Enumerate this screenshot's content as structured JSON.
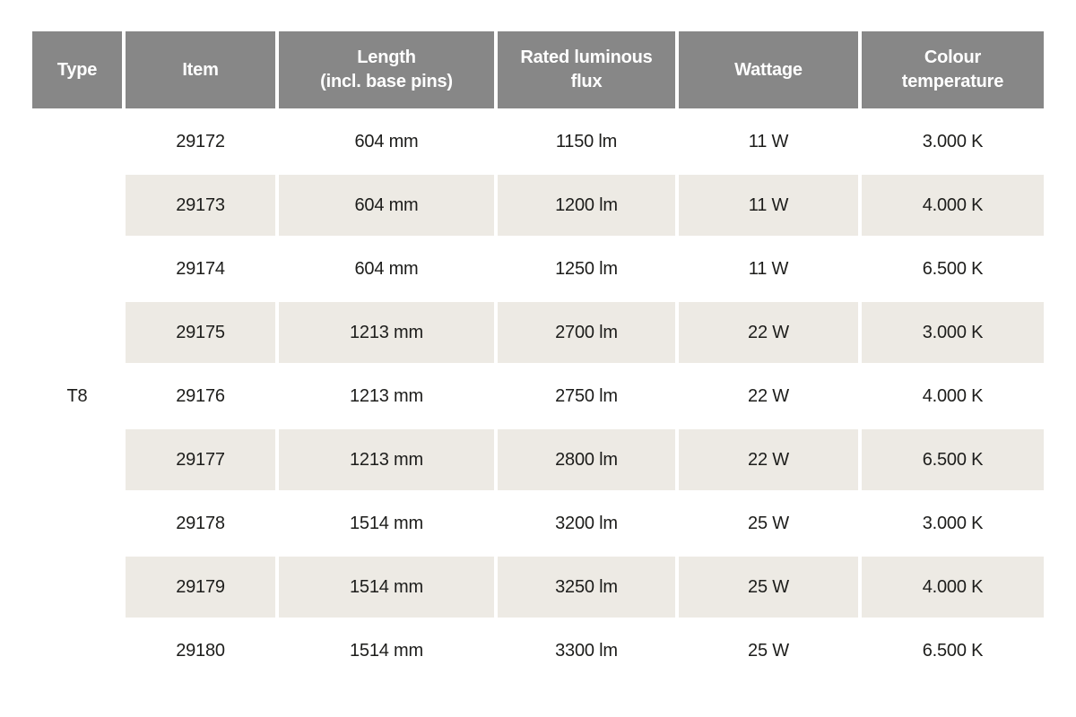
{
  "table": {
    "headers": [
      "Type",
      "Item",
      "Length\n(incl. base pins)",
      "Rated luminous\nflux",
      "Wattage",
      "Colour\ntemperature"
    ],
    "type_value": "T8",
    "rows": [
      {
        "item": "29172",
        "length": "604 mm",
        "flux": "1150 lm",
        "wattage": "11 W",
        "colour_temp": "3.000 K"
      },
      {
        "item": "29173",
        "length": "604 mm",
        "flux": "1200 lm",
        "wattage": "11 W",
        "colour_temp": "4.000 K"
      },
      {
        "item": "29174",
        "length": "604 mm",
        "flux": "1250 lm",
        "wattage": "11 W",
        "colour_temp": "6.500 K"
      },
      {
        "item": "29175",
        "length": "1213 mm",
        "flux": "2700 lm",
        "wattage": "22 W",
        "colour_temp": "3.000 K"
      },
      {
        "item": "29176",
        "length": "1213 mm",
        "flux": "2750 lm",
        "wattage": "22 W",
        "colour_temp": "4.000 K"
      },
      {
        "item": "29177",
        "length": "1213 mm",
        "flux": "2800 lm",
        "wattage": "22 W",
        "colour_temp": "6.500 K"
      },
      {
        "item": "29178",
        "length": "1514 mm",
        "flux": "3200 lm",
        "wattage": "25 W",
        "colour_temp": "3.000 K"
      },
      {
        "item": "29179",
        "length": "1514 mm",
        "flux": "3250 lm",
        "wattage": "25 W",
        "colour_temp": "4.000 K"
      },
      {
        "item": "29180",
        "length": "1514 mm",
        "flux": "3300 lm",
        "wattage": "25 W",
        "colour_temp": "6.500 K"
      }
    ]
  },
  "colors": {
    "header_bg": "#878787",
    "header_text": "#ffffff",
    "stripe_bg": "#edeae4",
    "row_bg": "#ffffff",
    "body_text": "#1d1d1b",
    "page_bg": "#ffffff"
  }
}
